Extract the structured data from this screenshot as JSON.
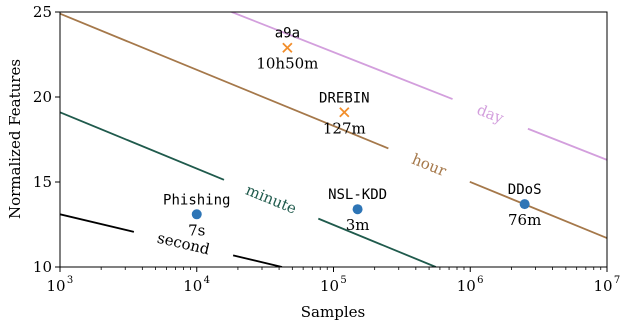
{
  "chart_data": {
    "type": "scatter",
    "xlabel": "Samples",
    "ylabel": "Normalized Features",
    "xscale": "log",
    "xlim": [
      1000,
      10000000
    ],
    "ylim": [
      10,
      25
    ],
    "grid": false,
    "x_ticks": [
      {
        "value": 1000,
        "base": "10",
        "exp": "3"
      },
      {
        "value": 10000,
        "base": "10",
        "exp": "4"
      },
      {
        "value": 100000,
        "base": "10",
        "exp": "5"
      },
      {
        "value": 1000000,
        "base": "10",
        "exp": "6"
      },
      {
        "value": 10000000,
        "base": "10",
        "exp": "7"
      }
    ],
    "y_ticks": [
      "10",
      "15",
      "20",
      "25"
    ],
    "contours": [
      {
        "label": "second",
        "color": "#000000",
        "x_start": 1000,
        "y_start": 13.1,
        "x_end": 42000,
        "y_end": 10.0,
        "label_x": 8000,
        "label_rot": -18
      },
      {
        "label": "minute",
        "color": "#1f5a4c",
        "x_start": 1000,
        "y_start": 19.1,
        "x_end": 560000,
        "y_end": 10.0,
        "label_x": 35000,
        "label_rot": -18
      },
      {
        "label": "hour",
        "color": "#a5784a",
        "x_start": 1000,
        "y_start": 24.9,
        "x_end": 10000000,
        "y_end": 11.7,
        "label_x": 500000,
        "label_rot": -18
      },
      {
        "label": "day",
        "color": "#d39fdd",
        "x_start": 18000,
        "y_start": 25.0,
        "x_end": 10000000,
        "y_end": 16.3,
        "label_x": 1400000,
        "label_rot": -18
      }
    ],
    "points": [
      {
        "name": "a9a",
        "time": "10h50m",
        "x": 46000,
        "y": 22.9,
        "marker": "x",
        "color": "#f28e2b"
      },
      {
        "name": "DREBIN",
        "time": "127m",
        "x": 120000,
        "y": 19.1,
        "marker": "x",
        "color": "#f28e2b"
      },
      {
        "name": "Phishing",
        "time": "7s",
        "x": 10000,
        "y": 13.1,
        "marker": "o",
        "color": "#2e75b6"
      },
      {
        "name": "NSL-KDD",
        "time": "3m",
        "x": 150000,
        "y": 13.4,
        "marker": "o",
        "color": "#2e75b6"
      },
      {
        "name": "DDoS",
        "time": "76m",
        "x": 2500000,
        "y": 13.7,
        "marker": "o",
        "color": "#2e75b6"
      }
    ]
  }
}
